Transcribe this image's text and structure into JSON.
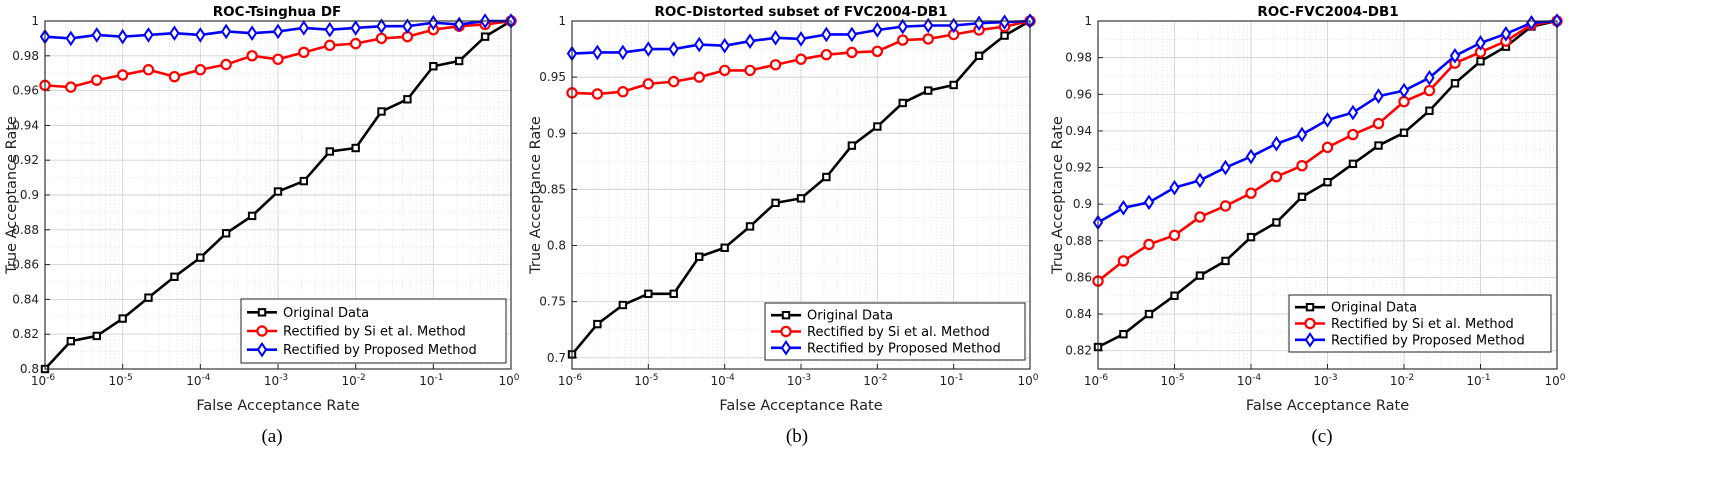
{
  "chart_data": [
    {
      "type": "line",
      "title": "ROC-Tsinghua DF",
      "xlabel": "False Acceptance Rate",
      "ylabel": "True Acceptance Rate",
      "caption": "(a)",
      "xscale": "log",
      "xlim": [
        1e-06,
        1
      ],
      "ylim": [
        0.8,
        1.0
      ],
      "yticks": [
        0.8,
        0.82,
        0.84,
        0.86,
        0.88,
        0.9,
        0.92,
        0.94,
        0.96,
        0.98,
        1.0
      ],
      "ytick_labels": [
        "0.8",
        "0.82",
        "0.84",
        "0.86",
        "0.88",
        "0.9",
        "0.92",
        "0.94",
        "0.96",
        "0.98",
        "1"
      ],
      "xtick_labels": [
        [
          "10",
          "-6"
        ],
        [
          "10",
          "-5"
        ],
        [
          "10",
          "-4"
        ],
        [
          "10",
          "-3"
        ],
        [
          "10",
          "-2"
        ],
        [
          "10",
          "-1"
        ],
        [
          "10",
          "0"
        ]
      ],
      "grid": true,
      "legend_position": "bottom-right",
      "x": [
        1e-06,
        2.15e-06,
        4.64e-06,
        1e-05,
        2.15e-05,
        4.64e-05,
        0.0001,
        0.000215,
        0.000464,
        0.001,
        0.00215,
        0.00464,
        0.01,
        0.0215,
        0.0464,
        0.1,
        0.215,
        0.464,
        1
      ],
      "series": [
        {
          "name": "Original Data",
          "color": "#000000",
          "marker": "square",
          "values": [
            0.8,
            0.816,
            0.819,
            0.829,
            0.841,
            0.853,
            0.864,
            0.878,
            0.888,
            0.902,
            0.908,
            0.925,
            0.927,
            0.948,
            0.955,
            0.974,
            0.977,
            0.991,
            1.0
          ]
        },
        {
          "name": "Rectified by Si et al. Method",
          "color": "#ff0000",
          "marker": "circle",
          "values": [
            0.963,
            0.962,
            0.966,
            0.969,
            0.972,
            0.968,
            0.972,
            0.975,
            0.98,
            0.978,
            0.982,
            0.986,
            0.987,
            0.99,
            0.991,
            0.995,
            0.997,
            0.998,
            1.0
          ]
        },
        {
          "name": "Rectified by Proposed Method",
          "color": "#0000ff",
          "marker": "diamond",
          "values": [
            0.991,
            0.99,
            0.992,
            0.991,
            0.992,
            0.993,
            0.992,
            0.994,
            0.993,
            0.994,
            0.996,
            0.995,
            0.996,
            0.997,
            0.997,
            0.999,
            0.998,
            1.0,
            1.0
          ]
        }
      ]
    },
    {
      "type": "line",
      "title": "ROC-Distorted subset of FVC2004-DB1",
      "xlabel": "False Acceptance Rate",
      "ylabel": "True Acceptance Rate",
      "caption": "(b)",
      "xscale": "log",
      "xlim": [
        1e-06,
        1
      ],
      "ylim": [
        0.69,
        1.0
      ],
      "yticks": [
        0.7,
        0.75,
        0.8,
        0.85,
        0.9,
        0.95,
        1.0
      ],
      "ytick_labels": [
        "0.7",
        "0.75",
        "0.8",
        "0.85",
        "0.9",
        "0.95",
        "1"
      ],
      "xtick_labels": [
        [
          "10",
          "-6"
        ],
        [
          "10",
          "-5"
        ],
        [
          "10",
          "-4"
        ],
        [
          "10",
          "-3"
        ],
        [
          "10",
          "-2"
        ],
        [
          "10",
          "-1"
        ],
        [
          "10",
          "0"
        ]
      ],
      "grid": true,
      "legend_position": "bottom-right",
      "x": [
        1e-06,
        2.15e-06,
        4.64e-06,
        1e-05,
        2.15e-05,
        4.64e-05,
        0.0001,
        0.000215,
        0.000464,
        0.001,
        0.00215,
        0.00464,
        0.01,
        0.0215,
        0.0464,
        0.1,
        0.215,
        0.464,
        1
      ],
      "series": [
        {
          "name": "Original Data",
          "color": "#000000",
          "marker": "square",
          "values": [
            0.703,
            0.73,
            0.747,
            0.757,
            0.757,
            0.79,
            0.798,
            0.817,
            0.838,
            0.842,
            0.861,
            0.889,
            0.906,
            0.927,
            0.938,
            0.943,
            0.969,
            0.987,
            1.0
          ]
        },
        {
          "name": "Rectified by Si et al. Method",
          "color": "#ff0000",
          "marker": "circle",
          "values": [
            0.936,
            0.935,
            0.937,
            0.944,
            0.946,
            0.95,
            0.956,
            0.956,
            0.961,
            0.966,
            0.97,
            0.972,
            0.973,
            0.983,
            0.984,
            0.988,
            0.992,
            0.995,
            1.0
          ]
        },
        {
          "name": "Rectified by Proposed Method",
          "color": "#0000ff",
          "marker": "diamond",
          "values": [
            0.971,
            0.972,
            0.972,
            0.975,
            0.975,
            0.979,
            0.978,
            0.982,
            0.985,
            0.984,
            0.988,
            0.988,
            0.992,
            0.995,
            0.996,
            0.996,
            0.998,
            0.999,
            1.0
          ]
        }
      ]
    },
    {
      "type": "line",
      "title": "ROC-FVC2004-DB1",
      "xlabel": "False Acceptance Rate",
      "ylabel": "True Acceptance Rate",
      "caption": "(c)",
      "xscale": "log",
      "xlim": [
        1e-06,
        1
      ],
      "ylim": [
        0.81,
        1.0
      ],
      "yticks": [
        0.82,
        0.84,
        0.86,
        0.88,
        0.9,
        0.92,
        0.94,
        0.96,
        0.98,
        1.0
      ],
      "ytick_labels": [
        "0.82",
        "0.84",
        "0.86",
        "0.88",
        "0.9",
        "0.92",
        "0.94",
        "0.96",
        "0.98",
        "1"
      ],
      "xtick_labels": [
        [
          "10",
          "-6"
        ],
        [
          "10",
          "-5"
        ],
        [
          "10",
          "-4"
        ],
        [
          "10",
          "-3"
        ],
        [
          "10",
          "-2"
        ],
        [
          "10",
          "-1"
        ],
        [
          "10",
          "0"
        ]
      ],
      "grid": true,
      "legend_position": "bottom-right",
      "x": [
        1e-06,
        2.15e-06,
        4.64e-06,
        1e-05,
        2.15e-05,
        4.64e-05,
        0.0001,
        0.000215,
        0.000464,
        0.001,
        0.00215,
        0.00464,
        0.01,
        0.0215,
        0.0464,
        0.1,
        0.215,
        0.464,
        1
      ],
      "series": [
        {
          "name": "Original Data",
          "color": "#000000",
          "marker": "square",
          "values": [
            0.822,
            0.829,
            0.84,
            0.85,
            0.861,
            0.869,
            0.882,
            0.89,
            0.904,
            0.912,
            0.922,
            0.932,
            0.939,
            0.951,
            0.966,
            0.978,
            0.986,
            0.997,
            1.0
          ]
        },
        {
          "name": "Rectified by Si et al. Method",
          "color": "#ff0000",
          "marker": "circle",
          "values": [
            0.858,
            0.869,
            0.878,
            0.883,
            0.893,
            0.899,
            0.906,
            0.915,
            0.921,
            0.931,
            0.938,
            0.944,
            0.956,
            0.962,
            0.977,
            0.983,
            0.989,
            0.998,
            1.0
          ]
        },
        {
          "name": "Rectified by Proposed Method",
          "color": "#0000ff",
          "marker": "diamond",
          "values": [
            0.89,
            0.898,
            0.901,
            0.909,
            0.913,
            0.92,
            0.926,
            0.933,
            0.938,
            0.946,
            0.95,
            0.959,
            0.962,
            0.969,
            0.981,
            0.988,
            0.993,
            0.999,
            1.0
          ]
        }
      ]
    }
  ]
}
